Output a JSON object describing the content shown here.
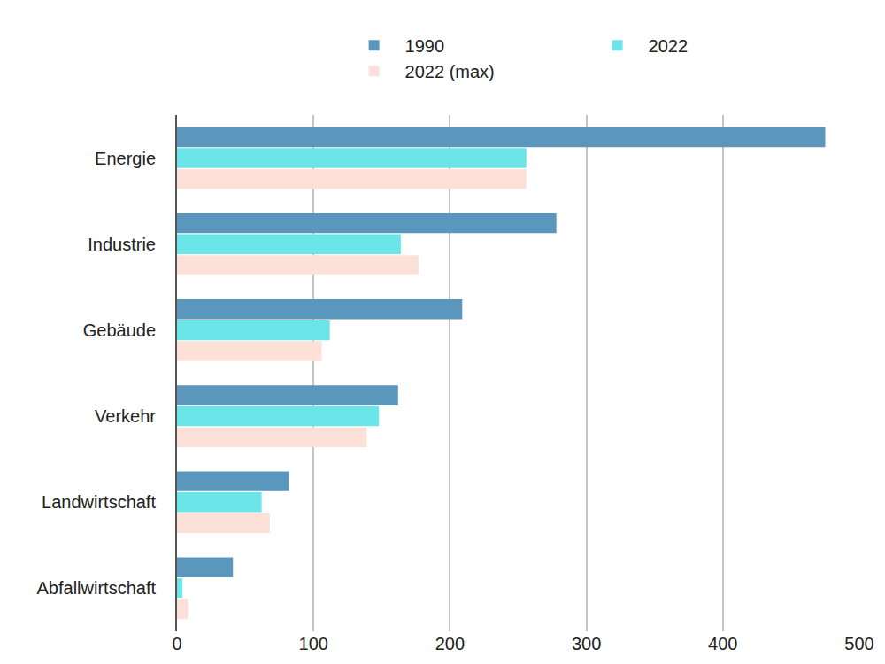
{
  "chart_data": {
    "type": "bar",
    "orientation": "horizontal",
    "categories": [
      "Energie",
      "Industrie",
      "Gebäude",
      "Verkehr",
      "Landwirtschaft",
      "Abfallwirtschaft"
    ],
    "series": [
      {
        "name": "1990",
        "color": "#5b97bd",
        "values": [
          475,
          278,
          209,
          162,
          82,
          41
        ]
      },
      {
        "name": "2022",
        "color": "#6be5e8",
        "values": [
          256,
          164,
          112,
          148,
          62,
          4
        ]
      },
      {
        "name": "2022 (max)",
        "color": "#fde0d8",
        "values": [
          256,
          177,
          106,
          139,
          68,
          8
        ]
      }
    ],
    "xlim": [
      0,
      500
    ],
    "xticks": [
      0,
      100,
      200,
      300,
      400,
      500
    ],
    "grid": true,
    "legend": "top"
  }
}
